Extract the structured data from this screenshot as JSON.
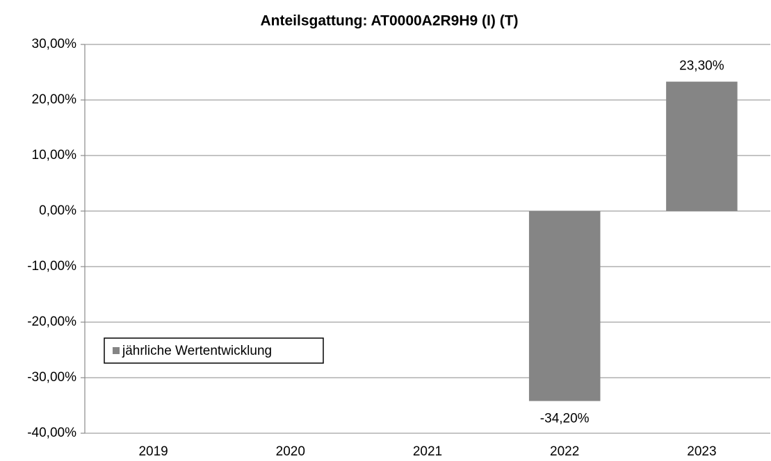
{
  "chart_data": {
    "type": "bar",
    "title": "Anteilsgattung: AT0000A2R9H9 (I) (T)",
    "categories": [
      "2019",
      "2020",
      "2021",
      "2022",
      "2023"
    ],
    "series": [
      {
        "name": "jährliche Wertentwicklung",
        "color": "#858585",
        "values": [
          null,
          null,
          null,
          -34.2,
          23.3
        ],
        "value_labels": [
          null,
          null,
          null,
          "-34,20%",
          "23,30%"
        ]
      }
    ],
    "ylim": [
      -40,
      30
    ],
    "yticks": [
      {
        "value": -40,
        "label": "-40,00%"
      },
      {
        "value": -30,
        "label": "-30,00%"
      },
      {
        "value": -20,
        "label": "-20,00%"
      },
      {
        "value": -10,
        "label": "-10,00%"
      },
      {
        "value": 0,
        "label": "0,00%"
      },
      {
        "value": 10,
        "label": "10,00%"
      },
      {
        "value": 20,
        "label": "20,00%"
      },
      {
        "value": 30,
        "label": "30,00%"
      }
    ],
    "grid": true,
    "legend": "lower left"
  }
}
